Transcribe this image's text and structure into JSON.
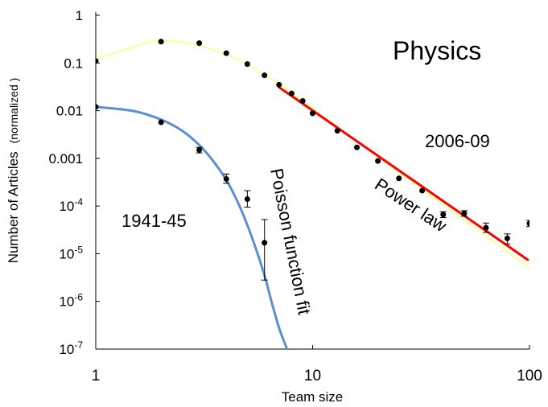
{
  "chart_data": {
    "type": "scatter",
    "scale": "log-log",
    "xlim": [
      1,
      100
    ],
    "ylim": [
      1e-07,
      1
    ],
    "xlabel": "Team size",
    "ylabel": "Number of Articles",
    "ylabel_note": "(normalized )",
    "title": "Physics",
    "x_ticks": [
      {
        "value": 1,
        "label": "1"
      },
      {
        "value": 10,
        "label": "10"
      },
      {
        "value": 100,
        "label": "100"
      }
    ],
    "y_ticks": [
      {
        "value": 1,
        "base": "1",
        "exp": ""
      },
      {
        "value": 0.1,
        "base": "0.1",
        "exp": ""
      },
      {
        "value": 0.01,
        "base": "0.01",
        "exp": ""
      },
      {
        "value": 0.001,
        "base": "0.001",
        "exp": ""
      },
      {
        "value": 0.0001,
        "base": "10",
        "exp": "-4"
      },
      {
        "value": 1e-05,
        "base": "10",
        "exp": "-5"
      },
      {
        "value": 1e-06,
        "base": "10",
        "exp": "-6"
      },
      {
        "value": 1e-07,
        "base": "10",
        "exp": "-7"
      }
    ],
    "series": [
      {
        "name": "2006-09",
        "color": "#000000",
        "points": [
          {
            "x": 1,
            "y": 0.11
          },
          {
            "x": 2,
            "y": 0.28
          },
          {
            "x": 3,
            "y": 0.26
          },
          {
            "x": 4,
            "y": 0.16
          },
          {
            "x": 5,
            "y": 0.095
          },
          {
            "x": 6,
            "y": 0.055
          },
          {
            "x": 7,
            "y": 0.035
          },
          {
            "x": 8,
            "y": 0.023
          },
          {
            "x": 9,
            "y": 0.016
          },
          {
            "x": 10,
            "y": 0.0088
          },
          {
            "x": 13,
            "y": 0.0038
          },
          {
            "x": 16,
            "y": 0.0017
          },
          {
            "x": 20,
            "y": 0.00088
          },
          {
            "x": 25,
            "y": 0.00038
          },
          {
            "x": 32,
            "y": 0.00021
          },
          {
            "x": 40,
            "y": 6.6e-05,
            "err": [
              5.7e-05,
              7.6e-05
            ]
          },
          {
            "x": 50,
            "y": 7e-05,
            "err": [
              6.1e-05,
              8e-05
            ]
          },
          {
            "x": 63,
            "y": 3.5e-05,
            "err": [
              2.8e-05,
              4.4e-05
            ]
          },
          {
            "x": 79,
            "y": 2.1e-05,
            "err": [
              1.6e-05,
              2.6e-05
            ]
          },
          {
            "x": 100,
            "y": 4.3e-05,
            "err": [
              3.7e-05,
              5e-05
            ]
          }
        ]
      },
      {
        "name": "1941-45",
        "color": "#000000",
        "points": [
          {
            "x": 1,
            "y": 0.012
          },
          {
            "x": 2,
            "y": 0.0057
          },
          {
            "x": 3,
            "y": 0.0015,
            "err": [
              0.0013,
              0.0017
            ]
          },
          {
            "x": 4,
            "y": 0.00037,
            "err": [
              0.0003,
              0.00047
            ]
          },
          {
            "x": 5,
            "y": 0.00014,
            "err": [
              9.5e-05,
              0.00021
            ]
          },
          {
            "x": 6,
            "y": 1.7e-05,
            "err": [
              2.8e-06,
              5.2e-05
            ]
          }
        ]
      }
    ],
    "fits": [
      {
        "name": "smooth-fit-2006-09",
        "color": "#ffff99",
        "points": [
          {
            "x": 1,
            "y": 0.12
          },
          {
            "x": 1.5,
            "y": 0.22
          },
          {
            "x": 2,
            "y": 0.3
          },
          {
            "x": 3,
            "y": 0.23
          },
          {
            "x": 4,
            "y": 0.15
          },
          {
            "x": 5,
            "y": 0.095
          },
          {
            "x": 6,
            "y": 0.058
          },
          {
            "x": 8,
            "y": 0.025
          },
          {
            "x": 10,
            "y": 0.011
          },
          {
            "x": 100,
            "y": 5e-06
          }
        ]
      },
      {
        "name": "power-law-fit",
        "label": "Power law",
        "color": "#ff0000",
        "points": [
          {
            "x": 7,
            "y": 0.031
          },
          {
            "x": 98,
            "y": 7.5e-06
          }
        ]
      },
      {
        "name": "poisson-fit",
        "label": "Poisson function fit",
        "color": "#5b8fd4",
        "points": [
          {
            "x": 1,
            "y": 0.012
          },
          {
            "x": 1.5,
            "y": 0.0098
          },
          {
            "x": 2,
            "y": 0.0065
          },
          {
            "x": 2.5,
            "y": 0.0038
          },
          {
            "x": 3,
            "y": 0.0019
          },
          {
            "x": 3.5,
            "y": 0.00085
          },
          {
            "x": 4,
            "y": 0.00035
          },
          {
            "x": 4.5,
            "y": 0.000125
          },
          {
            "x": 5,
            "y": 4e-05
          },
          {
            "x": 5.5,
            "y": 1.2e-05
          },
          {
            "x": 6,
            "y": 3.5e-06
          },
          {
            "x": 6.5,
            "y": 9e-07
          },
          {
            "x": 7,
            "y": 2.8e-07
          },
          {
            "x": 7.5,
            "y": 1.2e-07
          },
          {
            "x": 8,
            "y": 5.5e-08
          },
          {
            "x": 8.5,
            "y": 2.5e-08
          }
        ]
      }
    ],
    "annotations": {
      "label_2006": "2006-09",
      "label_1941": "1941-45"
    },
    "grid": false,
    "legend": "none"
  }
}
